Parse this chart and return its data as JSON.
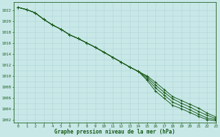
{
  "title": "Graphe pression niveau de la mer (hPa)",
  "background_color": "#c8e8e8",
  "grid_color": "#b0d4d4",
  "line_color": "#1a5c1a",
  "marker_color": "#1a5c1a",
  "xlim": [
    -0.5,
    23
  ],
  "ylim": [
    1001.5,
    1023.5
  ],
  "yticks": [
    1002,
    1004,
    1006,
    1008,
    1010,
    1012,
    1014,
    1016,
    1018,
    1020,
    1022
  ],
  "xticks": [
    0,
    1,
    2,
    3,
    4,
    5,
    6,
    7,
    8,
    9,
    10,
    11,
    12,
    13,
    14,
    15,
    16,
    17,
    18,
    19,
    20,
    21,
    22,
    23
  ],
  "series": [
    [
      1022.5,
      1022.1,
      1021.5,
      1020.3,
      1019.3,
      1018.5,
      1017.5,
      1016.8,
      1016.0,
      1015.2,
      1014.3,
      1013.4,
      1012.5,
      1011.6,
      1010.8,
      1010.0,
      1008.8,
      1007.5,
      1006.2,
      1005.5,
      1004.8,
      1004.1,
      1003.2,
      1002.5
    ],
    [
      1022.5,
      1022.1,
      1021.5,
      1020.3,
      1019.3,
      1018.5,
      1017.5,
      1016.8,
      1016.0,
      1015.2,
      1014.3,
      1013.4,
      1012.5,
      1011.6,
      1010.8,
      1009.8,
      1008.3,
      1007.0,
      1005.8,
      1005.0,
      1004.3,
      1003.5,
      1002.8,
      1002.2
    ],
    [
      1022.5,
      1022.1,
      1021.5,
      1020.3,
      1019.3,
      1018.5,
      1017.5,
      1016.8,
      1016.0,
      1015.2,
      1014.3,
      1013.4,
      1012.5,
      1011.6,
      1010.8,
      1009.5,
      1007.8,
      1006.5,
      1005.2,
      1004.5,
      1003.8,
      1003.0,
      1002.3,
      1002.0
    ],
    [
      1022.5,
      1022.1,
      1021.5,
      1020.3,
      1019.3,
      1018.5,
      1017.5,
      1016.8,
      1016.0,
      1015.2,
      1014.3,
      1013.4,
      1012.5,
      1011.6,
      1010.8,
      1009.2,
      1007.2,
      1005.9,
      1004.6,
      1004.0,
      1003.3,
      1002.6,
      1002.0,
      1001.8
    ]
  ]
}
